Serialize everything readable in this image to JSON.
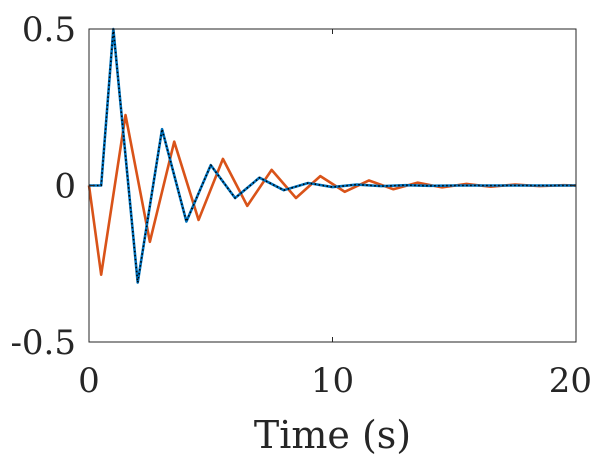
{
  "chart_data": {
    "type": "line",
    "title": "",
    "xlabel": "Time (s)",
    "ylabel": "",
    "xlim": [
      0,
      20
    ],
    "ylim": [
      -0.5,
      0.5
    ],
    "xticks": [
      0,
      10,
      20
    ],
    "yticks": [
      -0.5,
      0,
      0.5
    ],
    "xtick_labels": [
      "0",
      "10",
      "20"
    ],
    "ytick_labels": [
      "-0.5",
      "0",
      "0.5"
    ],
    "grid": false,
    "box": true,
    "series": [
      {
        "color": "#D95319",
        "style": "solid",
        "x": [
          0,
          0.5,
          1.5,
          2.5,
          3.5,
          4.5,
          5.5,
          6.5,
          7.5,
          8.5,
          9.5,
          10.5,
          11.5,
          12.5,
          13.5,
          14.5,
          15.5,
          16.5,
          17.5,
          18.5,
          19.5,
          20
        ],
        "y": [
          0,
          -0.285,
          0.225,
          -0.18,
          0.14,
          -0.11,
          0.085,
          -0.065,
          0.05,
          -0.04,
          0.03,
          -0.02,
          0.016,
          -0.012,
          0.009,
          -0.006,
          0.005,
          -0.004,
          0.003,
          -0.002,
          0.001,
          0
        ]
      },
      {
        "color": "#0072BD",
        "style": "solid",
        "x": [
          0,
          0.5,
          1,
          2,
          3,
          4,
          5,
          6,
          7,
          8,
          9,
          10,
          11,
          12,
          13,
          14,
          15,
          16,
          17,
          18,
          19,
          20
        ],
        "y": [
          0,
          0,
          0.5,
          -0.31,
          0.18,
          -0.115,
          0.065,
          -0.04,
          0.025,
          -0.015,
          0.008,
          -0.005,
          0.003,
          -0.002,
          0.001,
          -0.001,
          0,
          0,
          0,
          0,
          0,
          0
        ]
      },
      {
        "color": "#000000",
        "style": "dotted",
        "x": [
          0,
          0.5,
          1,
          2,
          3,
          4,
          5,
          6,
          7,
          8,
          9,
          10,
          11,
          12,
          13,
          14,
          15,
          16,
          17,
          18,
          19,
          20
        ],
        "y": [
          0,
          0,
          0.5,
          -0.31,
          0.18,
          -0.115,
          0.065,
          -0.04,
          0.025,
          -0.015,
          0.008,
          -0.005,
          0.003,
          -0.002,
          0.001,
          -0.001,
          0,
          0,
          0,
          0,
          0,
          0
        ]
      }
    ]
  }
}
